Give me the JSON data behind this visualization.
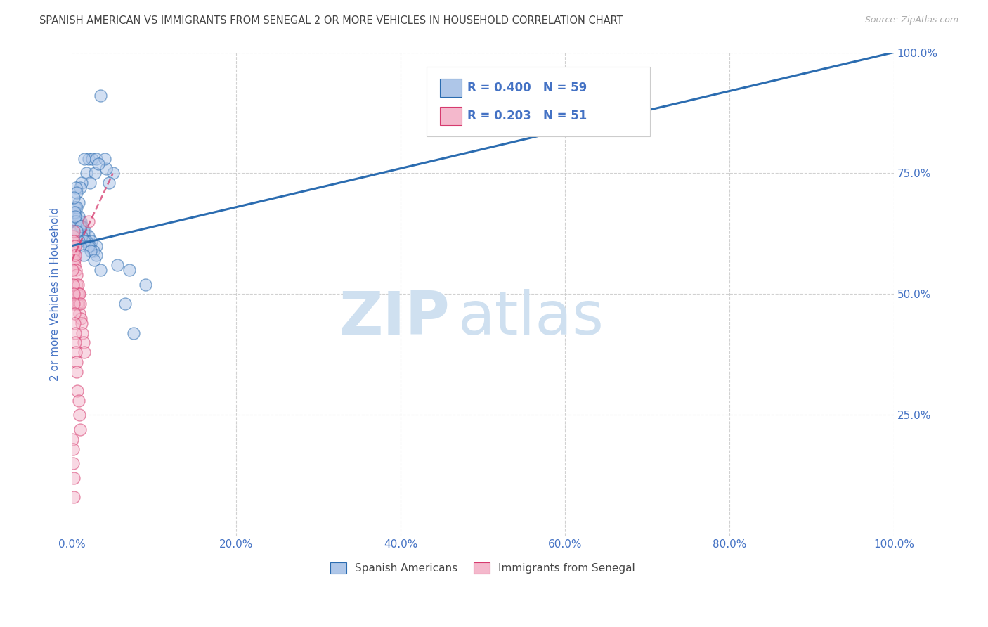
{
  "title": "SPANISH AMERICAN VS IMMIGRANTS FROM SENEGAL 2 OR MORE VEHICLES IN HOUSEHOLD CORRELATION CHART",
  "source": "Source: ZipAtlas.com",
  "ylabel": "2 or more Vehicles in Household",
  "R_blue": 0.4,
  "N_blue": 59,
  "R_pink": 0.203,
  "N_pink": 51,
  "blue_color": "#aec6e8",
  "blue_line_color": "#2b6cb0",
  "pink_color": "#f4b8cc",
  "pink_line_color": "#d63a6e",
  "legend_label_blue": "Spanish Americans",
  "legend_label_pink": "Immigrants from Senegal",
  "title_color": "#444444",
  "source_color": "#aaaaaa",
  "axis_label_color": "#4472c4",
  "watermark_zip": "ZIP",
  "watermark_atlas": "atlas",
  "watermark_color": "#cfe0f0",
  "blue_scatter_x": [
    3.5,
    5.0,
    4.2,
    2.0,
    2.5,
    3.0,
    4.0,
    1.5,
    1.8,
    2.8,
    3.2,
    2.2,
    4.5,
    1.2,
    1.0,
    0.8,
    0.5,
    0.6,
    0.4,
    0.3,
    0.7,
    0.9,
    1.1,
    1.3,
    1.6,
    2.0,
    2.4,
    3.0,
    0.5,
    0.8,
    1.0,
    1.4,
    1.8,
    2.2,
    2.6,
    3.0,
    0.6,
    0.9,
    1.2,
    1.5,
    2.0,
    2.3,
    2.7,
    0.3,
    0.5,
    0.7,
    0.8,
    1.0,
    1.4,
    7.0,
    9.0,
    5.5,
    6.5,
    0.4,
    1.1,
    0.2,
    0.6,
    3.5,
    7.5
  ],
  "blue_scatter_y": [
    91,
    75,
    76,
    78,
    78,
    78,
    78,
    78,
    75,
    75,
    77,
    73,
    73,
    73,
    72,
    69,
    72,
    71,
    68,
    65,
    65,
    65,
    65,
    64,
    63,
    62,
    61,
    60,
    67,
    66,
    64,
    63,
    61,
    60,
    59,
    58,
    68,
    64,
    62,
    61,
    60,
    59,
    57,
    67,
    65,
    63,
    61,
    60,
    58,
    55,
    52,
    56,
    48,
    66,
    64,
    70,
    63,
    55,
    42
  ],
  "pink_scatter_x": [
    0.05,
    0.08,
    0.1,
    0.12,
    0.15,
    0.18,
    0.2,
    0.22,
    0.25,
    0.28,
    0.3,
    0.35,
    0.4,
    0.45,
    0.5,
    0.55,
    0.6,
    0.65,
    0.7,
    0.75,
    0.8,
    0.85,
    0.9,
    0.95,
    1.0,
    1.1,
    1.2,
    1.3,
    1.4,
    1.5,
    0.1,
    0.15,
    0.2,
    0.25,
    0.3,
    0.35,
    0.4,
    0.45,
    0.5,
    0.55,
    0.6,
    0.7,
    0.8,
    0.9,
    1.0,
    0.08,
    0.12,
    0.18,
    0.22,
    0.28,
    2.0
  ],
  "pink_scatter_y": [
    57,
    60,
    58,
    61,
    62,
    60,
    63,
    58,
    61,
    59,
    57,
    56,
    60,
    58,
    55,
    52,
    54,
    50,
    48,
    52,
    50,
    48,
    50,
    46,
    48,
    45,
    44,
    42,
    40,
    38,
    55,
    52,
    50,
    48,
    46,
    44,
    42,
    40,
    38,
    36,
    34,
    30,
    28,
    25,
    22,
    20,
    18,
    15,
    12,
    8,
    65
  ],
  "blue_line_x0": 0,
  "blue_line_y0": 60,
  "blue_line_x1": 100,
  "blue_line_y1": 100,
  "pink_line_x0": 0,
  "pink_line_y0": 57,
  "pink_line_x1": 5.0,
  "pink_line_y1": 75,
  "xlim": [
    0,
    100
  ],
  "ylim": [
    0,
    100
  ],
  "xticks": [
    0,
    20,
    40,
    60,
    80,
    100
  ],
  "xticklabels": [
    "0.0%",
    "20.0%",
    "40.0%",
    "60.0%",
    "80.0%",
    "100.0%"
  ],
  "yticks_right": [
    25,
    50,
    75,
    100
  ],
  "yticklabels_right": [
    "25.0%",
    "50.0%",
    "75.0%",
    "100.0%"
  ],
  "grid_color": "#cccccc",
  "background_color": "#ffffff",
  "figsize": [
    14.06,
    8.92
  ],
  "dpi": 100
}
